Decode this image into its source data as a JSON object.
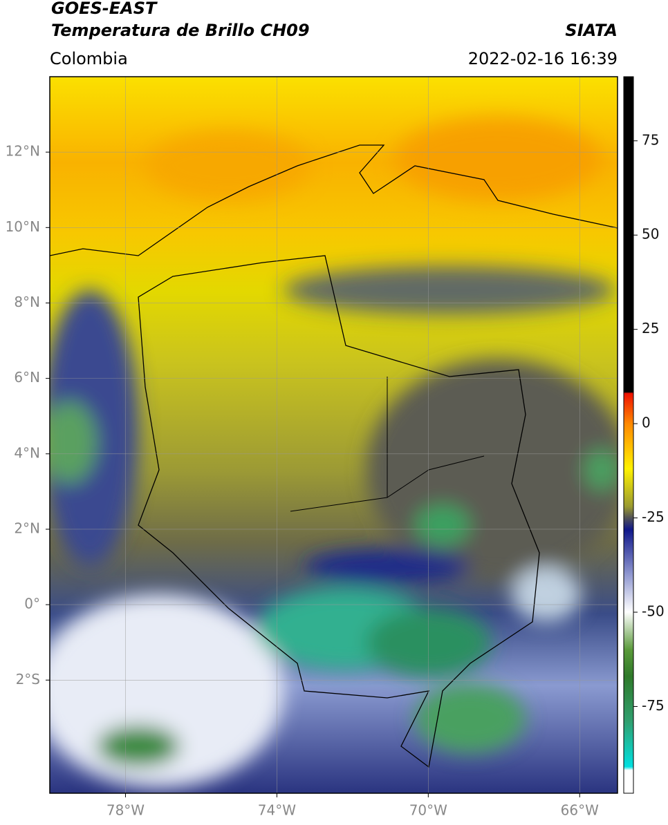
{
  "header": {
    "title": "GOES-EAST",
    "subtitle": "Temperatura de Brillo CH09",
    "region": "Colombia",
    "source": "SIATA",
    "datetime": "2022-02-16 16:39"
  },
  "map": {
    "xlim": [
      -80,
      -65
    ],
    "ylim": [
      -5,
      14
    ],
    "grid": true,
    "xticks": [
      {
        "value": -78,
        "label": "78°W"
      },
      {
        "value": -74,
        "label": "74°W"
      },
      {
        "value": -70,
        "label": "70°W"
      },
      {
        "value": -66,
        "label": "66°W"
      }
    ],
    "yticks": [
      {
        "value": 12,
        "label": "12°N"
      },
      {
        "value": 10,
        "label": "10°N"
      },
      {
        "value": 8,
        "label": "8°N"
      },
      {
        "value": 6,
        "label": "6°N"
      },
      {
        "value": 4,
        "label": "4°N"
      },
      {
        "value": 2,
        "label": "2°N"
      },
      {
        "value": 0,
        "label": "0°"
      },
      {
        "value": -2,
        "label": "2°S"
      }
    ]
  },
  "colorbar": {
    "lim": [
      -98,
      92
    ],
    "ticks": [
      75,
      50,
      25,
      0,
      -25,
      -50,
      -75
    ]
  }
}
